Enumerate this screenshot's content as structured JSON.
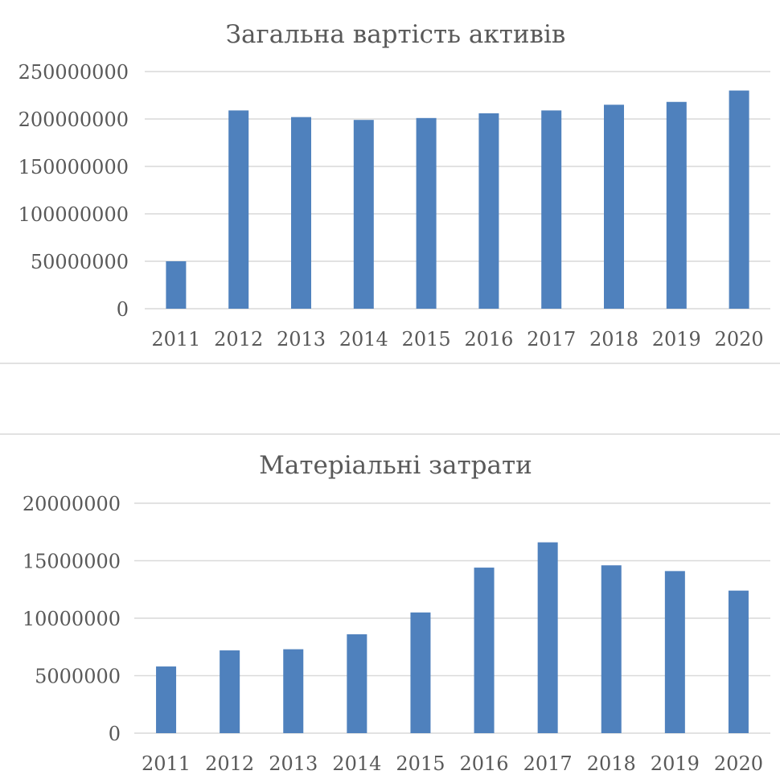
{
  "chart_data": [
    {
      "type": "bar",
      "title": "Загальна вартість активів",
      "categories": [
        "2011",
        "2012",
        "2013",
        "2014",
        "2015",
        "2016",
        "2017",
        "2018",
        "2019",
        "2020"
      ],
      "values": [
        50000000,
        209000000,
        202000000,
        199000000,
        201000000,
        206000000,
        209000000,
        215000000,
        218000000,
        230000000
      ],
      "yticks": [
        "0",
        "50000000",
        "100000000",
        "150000000",
        "200000000",
        "250000000"
      ],
      "ylim": [
        0,
        250000000
      ],
      "xlabel": "",
      "ylabel": "",
      "grid": true,
      "legend": "none",
      "color": "#4f81bd"
    },
    {
      "type": "bar",
      "title": "Матеріальні затрати",
      "categories": [
        "2011",
        "2012",
        "2013",
        "2014",
        "2015",
        "2016",
        "2017",
        "2018",
        "2019",
        "2020"
      ],
      "values": [
        5800000,
        7200000,
        7300000,
        8600000,
        10500000,
        14400000,
        16600000,
        14600000,
        14100000,
        12400000
      ],
      "yticks": [
        "0",
        "5000000",
        "10000000",
        "15000000",
        "20000000"
      ],
      "ylim": [
        0,
        20000000
      ],
      "xlabel": "",
      "ylabel": "",
      "grid": true,
      "legend": "none",
      "color": "#4f81bd"
    }
  ]
}
